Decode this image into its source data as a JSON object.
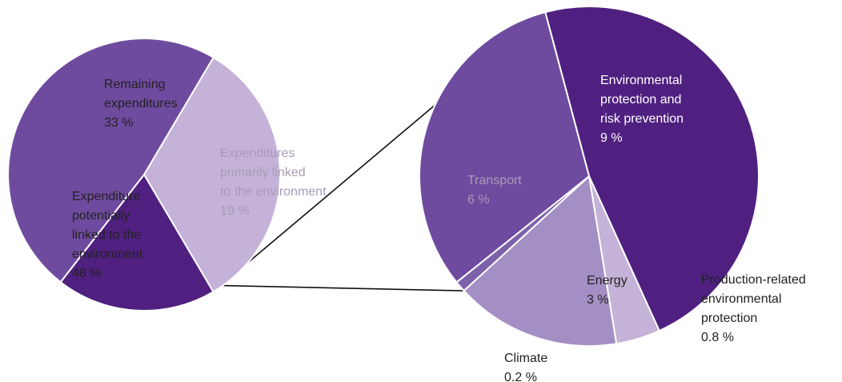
{
  "chart_data": [
    {
      "type": "pie",
      "title": "",
      "slices": [
        {
          "label_lines": [
            "Remaining",
            "expenditures"
          ],
          "value_label": "33 %",
          "value": 33,
          "color": "#c4b2d8",
          "text_color": "#222222"
        },
        {
          "label_lines": [
            "Expenditures",
            "primarily linked",
            "to the environment"
          ],
          "value_label": "19 %",
          "value": 19,
          "color": "#4f2080",
          "text_color": "#a99bb5"
        },
        {
          "label_lines": [
            "Expenditure",
            "potentially",
            "linked to the",
            "environment"
          ],
          "value_label": "48 %",
          "value": 48,
          "color": "#6f4b9f",
          "text_color": "#222222"
        }
      ]
    },
    {
      "type": "pie",
      "title": "",
      "slices": [
        {
          "label_lines": [
            "Environmental",
            "protection and",
            "risk prevention"
          ],
          "value_label": "9 %",
          "value": 9,
          "color": "#4f2080",
          "text_color": "#ffffff"
        },
        {
          "label_lines": [
            "Production-related",
            "environmental",
            "protection"
          ],
          "value_label": "0.8 %",
          "value": 0.8,
          "color": "#c4b2d8",
          "text_color": "#222222"
        },
        {
          "label_lines": [
            "Energy"
          ],
          "value_label": "3 %",
          "value": 3,
          "color": "#a48fc4",
          "text_color": "#222222"
        },
        {
          "label_lines": [
            "Climate"
          ],
          "value_label": "0.2 %",
          "value": 0.2,
          "color": "#7d62a9",
          "text_color": "#222222"
        },
        {
          "label_lines": [
            "Transport"
          ],
          "value_label": "6 %",
          "value": 6,
          "color": "#6f4b9f",
          "text_color": "#a99bb5"
        }
      ]
    }
  ]
}
